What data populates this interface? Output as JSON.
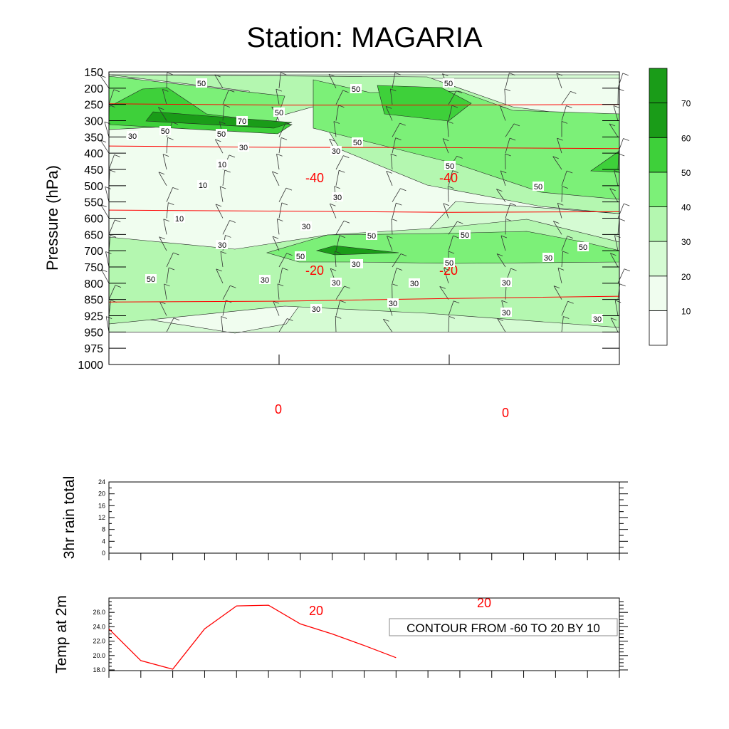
{
  "title": "Station: MAGARIA",
  "chart_data": [
    {
      "type": "contour",
      "ylabel": "Pressure (hPa)",
      "y_ticks": [
        150,
        200,
        250,
        300,
        350,
        400,
        450,
        500,
        550,
        600,
        650,
        700,
        750,
        800,
        850,
        925,
        950,
        975,
        1000
      ],
      "x_positions": [
        0,
        1,
        2,
        3
      ],
      "fill_field": "humidity",
      "fill_levels": [
        10,
        20,
        30,
        40,
        50,
        60,
        70
      ],
      "fill_colors": [
        "#ffffff",
        "#f0fdef",
        "#d5fbd3",
        "#b4f7b0",
        "#7cf078",
        "#3ed03a",
        "#1a9c18"
      ],
      "colorbar_labels": [
        "10",
        "20",
        "30",
        "40",
        "50",
        "60",
        "70"
      ],
      "fill_regions": [
        {
          "level": 20,
          "top": 150,
          "bottom": 950
        },
        {
          "level": 30,
          "top": 160,
          "bottom": 950
        },
        {
          "level": 40,
          "top": 160,
          "bottom": 320
        },
        {
          "level": 50,
          "top": 165,
          "bottom": 300
        },
        {
          "level": 60,
          "top": 190,
          "bottom": 290
        },
        {
          "level": 70,
          "top": 270,
          "bottom": 300
        }
      ],
      "fill_labels": [
        "50",
        "50",
        "50",
        "50",
        "70",
        "50",
        "50",
        "30",
        "50",
        "30",
        "30",
        "10",
        "10",
        "50",
        "50",
        "30",
        "30",
        "10",
        "30",
        "50",
        "50",
        "50",
        "50",
        "50",
        "50",
        "30",
        "50",
        "30",
        "30",
        "30",
        "30",
        "30",
        "30",
        "30",
        "30",
        "30",
        "30"
      ],
      "temperature_contours": {
        "range": "-60 TO 20",
        "interval": 10,
        "lines": [
          {
            "value": -40,
            "pressure": [
              248,
              252,
              252,
              250
            ]
          },
          {
            "value": -20,
            "pressure": [
              378,
              382,
              383,
              386
            ]
          },
          {
            "value": 0,
            "pressure": [
              575,
              578,
              582,
              580
            ]
          },
          {
            "value": 20,
            "pressure": [
              862,
              858,
              847,
              840
            ]
          }
        ],
        "labels": [
          "-40",
          "-40",
          "-20",
          "-20",
          "0",
          "0",
          "20",
          "20"
        ]
      }
    },
    {
      "type": "line",
      "ylabel": "3hr rain total",
      "y_ticks": [
        "0",
        "4",
        "8",
        "12",
        "16",
        "20",
        "24"
      ],
      "ylim": [
        0,
        24
      ],
      "values": []
    },
    {
      "type": "line",
      "ylabel": "Temp at 2m",
      "y_ticks": [
        "18.0",
        "20.0",
        "22.0",
        "24.0",
        "26.0"
      ],
      "ylim": [
        17.9,
        28
      ],
      "x": [
        0,
        1,
        2,
        3,
        4,
        5,
        6,
        7,
        8,
        9
      ],
      "values": [
        23.7,
        19.3,
        18.1,
        23.7,
        26.9,
        27.0,
        24.4,
        23.0,
        21.4,
        19.7
      ],
      "series_color": "#ff0000"
    }
  ],
  "annotation": "CONTOUR FROM -60 TO 20 BY 10"
}
